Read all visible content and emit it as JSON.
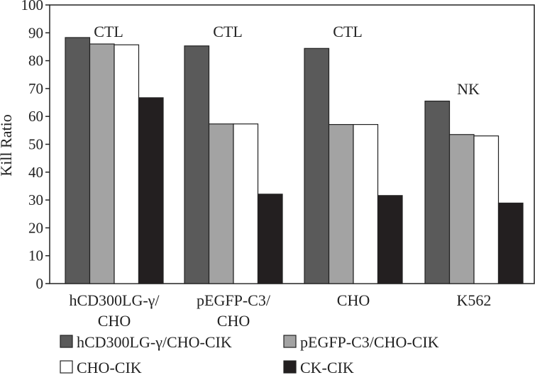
{
  "chart_data": {
    "type": "bar",
    "ylabel": "Kill Ratio",
    "ylim": [
      0,
      100
    ],
    "yticks": [
      0,
      10,
      20,
      30,
      40,
      50,
      60,
      70,
      80,
      90,
      100
    ],
    "categories": [
      [
        "hCD300LG-γ/",
        "CHO"
      ],
      [
        "pEGFP-C3/",
        "CHO"
      ],
      [
        "CHO"
      ],
      [
        "K562"
      ]
    ],
    "annotations": [
      "CTL",
      "CTL",
      "CTL",
      "NK"
    ],
    "series": [
      {
        "name": "hCD300LG-γ/CHO-CIK",
        "color": "#5a5a5a",
        "values": [
          88.3,
          85.3,
          84.4,
          65.5
        ]
      },
      {
        "name": "pEGFP-C3/CHO-CIK",
        "color": "#a3a3a3",
        "values": [
          86.0,
          57.3,
          57.1,
          53.5
        ]
      },
      {
        "name": "CHO-CIK",
        "color": "#ffffff",
        "values": [
          85.7,
          57.3,
          57.1,
          53.0
        ]
      },
      {
        "name": "CK-CIK",
        "color": "#231f20",
        "values": [
          66.7,
          32.1,
          31.6,
          28.9
        ]
      }
    ],
    "legend_position": "bottom"
  }
}
